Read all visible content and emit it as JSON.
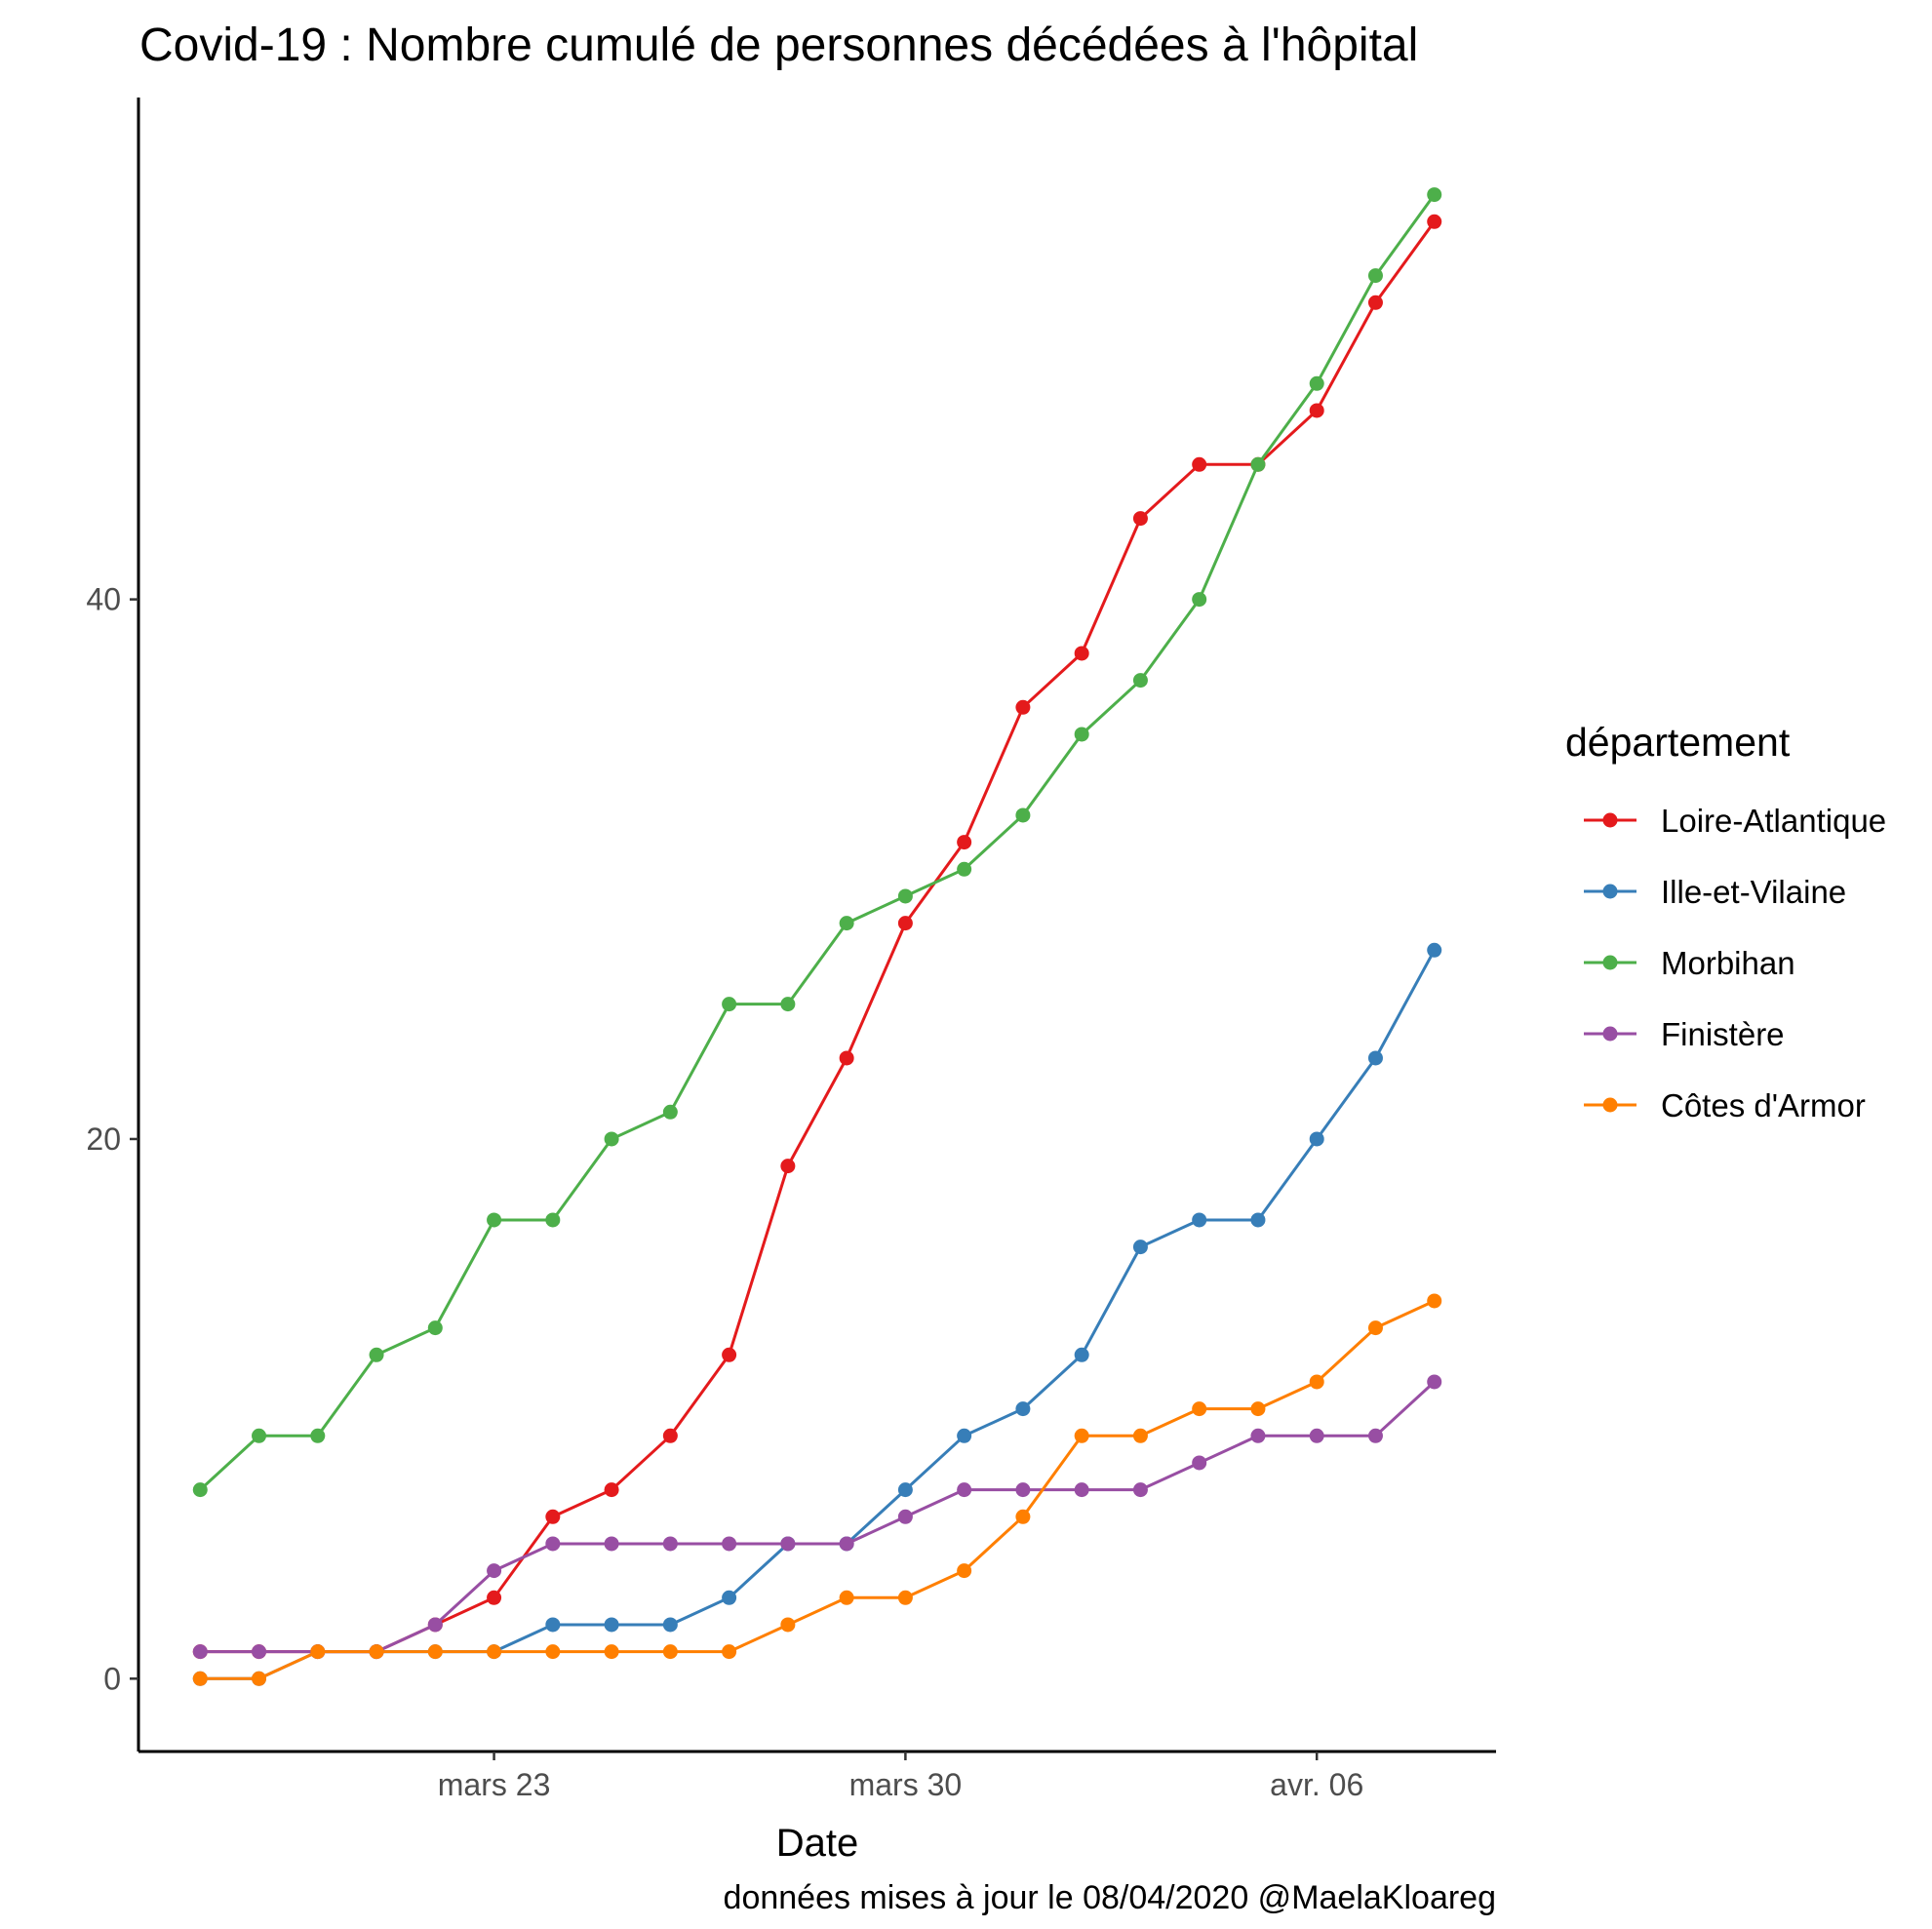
{
  "chart_data": {
    "type": "line",
    "title": "Covid-19 : Nombre cumulé de personnes décédées à l'hôpital",
    "xlabel": "Date",
    "ylabel": "",
    "caption": "données mises à jour le 08/04/2020 @MaelaKloareg",
    "x": [
      "2020-03-18",
      "2020-03-19",
      "2020-03-20",
      "2020-03-21",
      "2020-03-22",
      "2020-03-23",
      "2020-03-24",
      "2020-03-25",
      "2020-03-26",
      "2020-03-27",
      "2020-03-28",
      "2020-03-29",
      "2020-03-30",
      "2020-03-31",
      "2020-04-01",
      "2020-04-02",
      "2020-04-03",
      "2020-04-04",
      "2020-04-05",
      "2020-04-06",
      "2020-04-07",
      "2020-04-08"
    ],
    "x_ticks": [
      {
        "date": "2020-03-23",
        "label": "mars 23"
      },
      {
        "date": "2020-03-30",
        "label": "mars 30"
      },
      {
        "date": "2020-04-06",
        "label": "avr. 06"
      }
    ],
    "y_ticks": [
      0,
      20,
      40
    ],
    "ylim": [
      -2.7,
      58.6
    ],
    "grid": false,
    "legend": {
      "title": "département",
      "position": "right"
    },
    "series": [
      {
        "name": "Loire-Atlantique",
        "color": "#E41A1C",
        "values": [
          1,
          1,
          1,
          1,
          2,
          3,
          6,
          7,
          9,
          12,
          19,
          23,
          28,
          31,
          36,
          38,
          43,
          45,
          45,
          47,
          51,
          54
        ]
      },
      {
        "name": "Ille-et-Vilaine",
        "color": "#377EB8",
        "values": [
          0,
          0,
          1,
          1,
          1,
          1,
          2,
          2,
          2,
          3,
          5,
          5,
          7,
          9,
          10,
          12,
          16,
          17,
          17,
          20,
          23,
          27
        ]
      },
      {
        "name": "Morbihan",
        "color": "#4DAF4A",
        "values": [
          7,
          9,
          9,
          12,
          13,
          17,
          17,
          20,
          21,
          25,
          25,
          28,
          29,
          30,
          32,
          35,
          37,
          40,
          45,
          48,
          52,
          55
        ]
      },
      {
        "name": "Finistère",
        "color": "#984EA3",
        "values": [
          1,
          1,
          1,
          1,
          2,
          4,
          5,
          5,
          5,
          5,
          5,
          5,
          6,
          7,
          7,
          7,
          7,
          8,
          9,
          9,
          9,
          11
        ]
      },
      {
        "name": "Côtes d'Armor",
        "color": "#FF7F00",
        "values": [
          0,
          0,
          1,
          1,
          1,
          1,
          1,
          1,
          1,
          1,
          2,
          3,
          3,
          4,
          6,
          9,
          9,
          10,
          10,
          11,
          13,
          14
        ]
      }
    ]
  }
}
